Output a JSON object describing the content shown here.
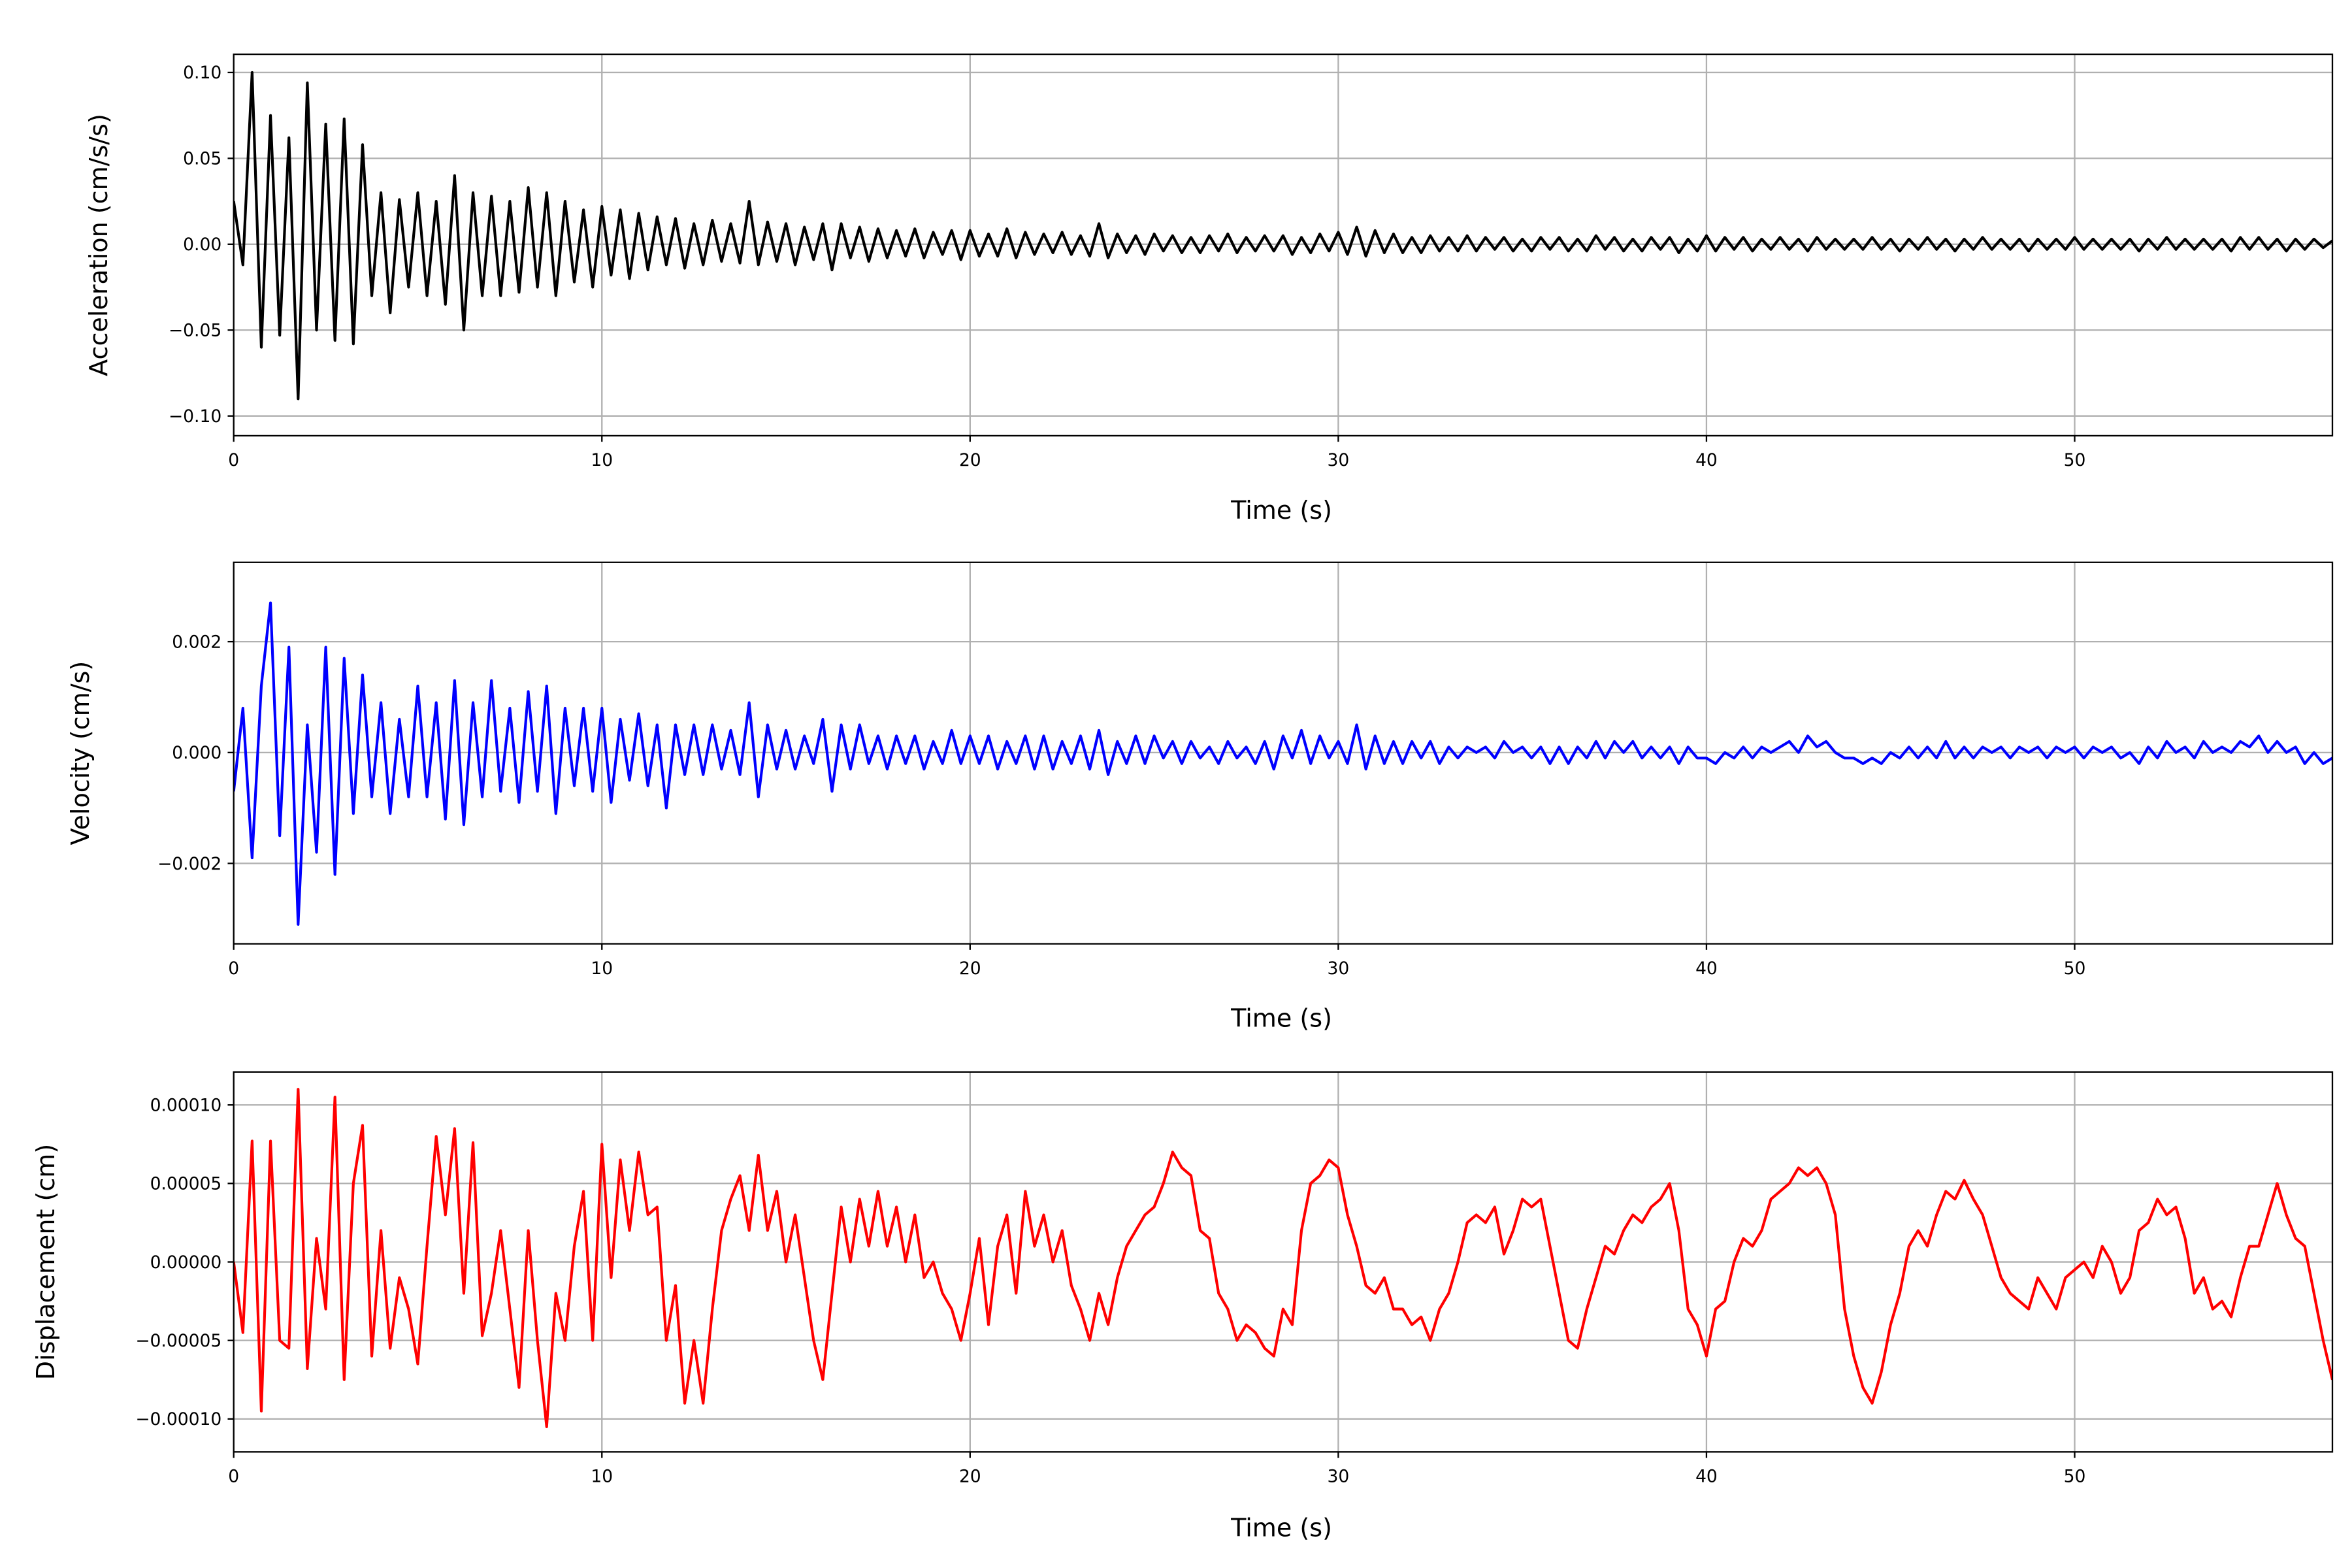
{
  "chart_data": [
    {
      "type": "line",
      "ylabel": "Acceleration (cm/s/s)",
      "xlabel": "Time (s)",
      "color": "#000000",
      "xlim": [
        0,
        57
      ],
      "ylim": [
        -0.1115,
        0.1106
      ],
      "grid": true,
      "xticks": [
        0,
        10,
        20,
        30,
        40,
        50
      ],
      "xtick_labels": [
        "0",
        "10",
        "20",
        "30",
        "40",
        "50"
      ],
      "yticks": [
        0.1,
        0.05,
        0,
        -0.05,
        -0.1
      ],
      "ytick_labels": [
        "0.10",
        "0.05",
        "0.00",
        "−0.05",
        "−0.10"
      ],
      "t0": 0,
      "dt": 0.25,
      "value_scale": 1,
      "values": [
        0.025,
        -0.012,
        0.1,
        -0.06,
        0.075,
        -0.053,
        0.062,
        -0.09,
        0.094,
        -0.05,
        0.07,
        -0.056,
        0.073,
        -0.058,
        0.058,
        -0.03,
        0.03,
        -0.04,
        0.026,
        -0.025,
        0.03,
        -0.03,
        0.025,
        -0.035,
        0.04,
        -0.05,
        0.03,
        -0.03,
        0.028,
        -0.03,
        0.025,
        -0.028,
        0.033,
        -0.025,
        0.03,
        -0.03,
        0.025,
        -0.022,
        0.02,
        -0.025,
        0.022,
        -0.018,
        0.02,
        -0.02,
        0.018,
        -0.015,
        0.016,
        -0.012,
        0.015,
        -0.014,
        0.012,
        -0.012,
        0.014,
        -0.01,
        0.012,
        -0.011,
        0.025,
        -0.012,
        0.013,
        -0.01,
        0.012,
        -0.012,
        0.01,
        -0.009,
        0.012,
        -0.015,
        0.012,
        -0.008,
        0.01,
        -0.01,
        0.009,
        -0.008,
        0.008,
        -0.007,
        0.009,
        -0.008,
        0.007,
        -0.006,
        0.008,
        -0.009,
        0.008,
        -0.007,
        0.006,
        -0.007,
        0.009,
        -0.008,
        0.007,
        -0.006,
        0.006,
        -0.005,
        0.007,
        -0.006,
        0.005,
        -0.007,
        0.012,
        -0.008,
        0.006,
        -0.005,
        0.005,
        -0.006,
        0.006,
        -0.004,
        0.005,
        -0.005,
        0.004,
        -0.005,
        0.005,
        -0.004,
        0.006,
        -0.005,
        0.004,
        -0.004,
        0.005,
        -0.004,
        0.005,
        -0.006,
        0.004,
        -0.005,
        0.006,
        -0.004,
        0.007,
        -0.006,
        0.01,
        -0.007,
        0.008,
        -0.005,
        0.006,
        -0.005,
        0.004,
        -0.005,
        0.005,
        -0.004,
        0.004,
        -0.004,
        0.005,
        -0.004,
        0.004,
        -0.003,
        0.004,
        -0.004,
        0.003,
        -0.004,
        0.004,
        -0.003,
        0.004,
        -0.004,
        0.003,
        -0.004,
        0.005,
        -0.003,
        0.004,
        -0.004,
        0.003,
        -0.004,
        0.004,
        -0.003,
        0.004,
        -0.005,
        0.003,
        -0.004,
        0.005,
        -0.004,
        0.004,
        -0.003,
        0.004,
        -0.004,
        0.003,
        -0.003,
        0.004,
        -0.003,
        0.003,
        -0.004,
        0.004,
        -0.003,
        0.003,
        -0.003,
        0.003,
        -0.003,
        0.004,
        -0.003,
        0.003,
        -0.004,
        0.003,
        -0.003,
        0.004,
        -0.003,
        0.003,
        -0.004,
        0.003,
        -0.003,
        0.004,
        -0.003,
        0.003,
        -0.003,
        0.003,
        -0.004,
        0.003,
        -0.003,
        0.003,
        -0.003,
        0.004,
        -0.003,
        0.003,
        -0.003,
        0.003,
        -0.003,
        0.003,
        -0.004,
        0.003,
        -0.003,
        0.004,
        -0.003,
        0.003,
        -0.003,
        0.003,
        -0.003,
        0.003,
        -0.004,
        0.004,
        -0.003,
        0.004,
        -0.003,
        0.003,
        -0.004,
        0.003,
        -0.003,
        0.003,
        -0.002,
        0.002
      ]
    },
    {
      "type": "line",
      "ylabel": "Velocity (cm/s)",
      "xlabel": "Time (s)",
      "color": "#0000ff",
      "xlim": [
        0,
        57
      ],
      "ylim": [
        -0.00345,
        0.00343
      ],
      "grid": true,
      "xticks": [
        0,
        10,
        20,
        30,
        40,
        50
      ],
      "xtick_labels": [
        "0",
        "10",
        "20",
        "30",
        "40",
        "50"
      ],
      "yticks": [
        0.002,
        0,
        -0.002
      ],
      "ytick_labels": [
        "0.002",
        "0.000",
        "−0.002"
      ],
      "t0": 0,
      "dt": 0.25,
      "value_scale": 1,
      "values": [
        -0.0007,
        0.0008,
        -0.0019,
        0.0012,
        0.0027,
        -0.0015,
        0.0019,
        -0.0031,
        0.0005,
        -0.0018,
        0.0019,
        -0.0022,
        0.0017,
        -0.0011,
        0.0014,
        -0.0008,
        0.0009,
        -0.0011,
        0.0006,
        -0.0008,
        0.0012,
        -0.0008,
        0.0009,
        -0.0012,
        0.0013,
        -0.0013,
        0.0009,
        -0.0008,
        0.0013,
        -0.0007,
        0.0008,
        -0.0009,
        0.0011,
        -0.0007,
        0.0012,
        -0.0011,
        0.0008,
        -0.0006,
        0.0008,
        -0.0007,
        0.0008,
        -0.0009,
        0.0006,
        -0.0005,
        0.0007,
        -0.0006,
        0.0005,
        -0.001,
        0.0005,
        -0.0004,
        0.0005,
        -0.0004,
        0.0005,
        -0.0003,
        0.0004,
        -0.0004,
        0.0009,
        -0.0008,
        0.0005,
        -0.0003,
        0.0004,
        -0.0003,
        0.0003,
        -0.0002,
        0.0006,
        -0.0007,
        0.0005,
        -0.0003,
        0.0005,
        -0.0002,
        0.0003,
        -0.0003,
        0.0003,
        -0.0002,
        0.0003,
        -0.0003,
        0.0002,
        -0.0002,
        0.0004,
        -0.0002,
        0.0003,
        -0.0002,
        0.0003,
        -0.0003,
        0.0002,
        -0.0002,
        0.0003,
        -0.0003,
        0.0003,
        -0.0003,
        0.0002,
        -0.0002,
        0.0003,
        -0.0003,
        0.0004,
        -0.0004,
        0.0002,
        -0.0002,
        0.0003,
        -0.0002,
        0.0003,
        -0.0001,
        0.0002,
        -0.0002,
        0.0002,
        -0.0001,
        0.0001,
        -0.0002,
        0.0002,
        -0.0001,
        0.0001,
        -0.0002,
        0.0002,
        -0.0003,
        0.0003,
        -0.0001,
        0.0004,
        -0.0002,
        0.0003,
        -0.0001,
        0.0002,
        -0.0002,
        0.0005,
        -0.0003,
        0.0003,
        -0.0002,
        0.0002,
        -0.0002,
        0.0002,
        -0.0001,
        0.0002,
        -0.0002,
        0.0001,
        -0.0001,
        0.0001,
        0,
        0.0001,
        -0.0001,
        0.0002,
        0,
        0.0001,
        -0.0001,
        0.0001,
        -0.0002,
        0.0001,
        -0.0002,
        0.0001,
        -0.0001,
        0.0002,
        -0.0001,
        0.0002,
        0,
        0.0002,
        -0.0001,
        0.0001,
        -0.0001,
        0.0001,
        -0.0002,
        0.0001,
        -0.0001,
        -0.0001,
        -0.0002,
        0,
        -0.0001,
        0.0001,
        -0.0001,
        0.0001,
        0,
        0.0001,
        0.0002,
        0,
        0.0003,
        0.0001,
        0.0002,
        0,
        -0.0001,
        -0.0001,
        -0.0002,
        -0.0001,
        -0.0002,
        0,
        -0.0001,
        0.0001,
        -0.0001,
        0.0001,
        -0.0001,
        0.0002,
        -0.0001,
        0.0001,
        -0.0001,
        0.0001,
        0,
        0.0001,
        -0.0001,
        0.0001,
        0,
        0.0001,
        -0.0001,
        0.0001,
        0,
        0.0001,
        -0.0001,
        0.0001,
        0,
        0.0001,
        -0.0001,
        0,
        -0.0002,
        0.0001,
        -0.0001,
        0.0002,
        0,
        0.0001,
        -0.0001,
        0.0002,
        0,
        0.0001,
        0,
        0.0002,
        0.0001,
        0.0003,
        0,
        0.0002,
        0,
        0.0001,
        -0.0002,
        0,
        -0.0002,
        -0.0001
      ]
    },
    {
      "type": "line",
      "ylabel": "Displacement (cm)",
      "xlabel": "Time (s)",
      "color": "#ff0000",
      "xlim": [
        0,
        57
      ],
      "ylim": [
        -0.000121,
        0.000121
      ],
      "grid": true,
      "xticks": [
        0,
        10,
        20,
        30,
        40,
        50
      ],
      "xtick_labels": [
        "0",
        "10",
        "20",
        "30",
        "40",
        "50"
      ],
      "yticks": [
        0.0001,
        5e-05,
        0,
        -5e-05,
        -0.0001
      ],
      "ytick_labels": [
        "0.00010",
        "0.00005",
        "0.00000",
        "−0.00005",
        "−0.00010"
      ],
      "t0": 0,
      "dt": 0.25,
      "value_scale": 1e-05,
      "values": [
        0,
        -4.5,
        7.7,
        -9.5,
        7.7,
        -5,
        -5.5,
        11,
        -6.8,
        1.5,
        -3,
        10.5,
        -7.5,
        5,
        8.7,
        -6,
        2,
        -5.5,
        -1,
        -3,
        -6.5,
        1,
        8,
        3,
        8.5,
        -2,
        7.6,
        -4.7,
        -2,
        2,
        -3,
        -8,
        2,
        -5,
        -10.5,
        -2,
        -5,
        1,
        4.5,
        -5,
        7.5,
        -1,
        6.5,
        2,
        7,
        3,
        3.5,
        -5,
        -1.5,
        -9,
        -5,
        -9,
        -3,
        2,
        4,
        5.5,
        2,
        6.8,
        2,
        4.5,
        0,
        3,
        -1,
        -5,
        -7.5,
        -2,
        3.5,
        0,
        4,
        1,
        4.5,
        1,
        3.5,
        0,
        3,
        -1,
        0,
        -2,
        -3,
        -5,
        -2,
        1.5,
        -4,
        1,
        3,
        -2,
        4.5,
        1,
        3,
        0,
        2,
        -1.5,
        -3,
        -5,
        -2,
        -4,
        -1,
        1,
        2,
        3,
        3.5,
        5,
        7,
        6,
        5.5,
        2,
        1.5,
        -2,
        -3,
        -5,
        -4,
        -4.5,
        -5.5,
        -6,
        -3,
        -4,
        2,
        5,
        5.5,
        6.5,
        6,
        3,
        1,
        -1.5,
        -2,
        -1,
        -3,
        -3,
        -4,
        -3.5,
        -5,
        -3,
        -2,
        0,
        2.5,
        3,
        2.5,
        3.5,
        0.5,
        2,
        4,
        3.5,
        4,
        1,
        -2,
        -5,
        -5.5,
        -3,
        -1,
        1,
        0.5,
        2,
        3,
        2.5,
        3.5,
        4,
        5,
        2,
        -3,
        -4,
        -6,
        -3,
        -2.5,
        0,
        1.5,
        1,
        2,
        4,
        4.5,
        5,
        6,
        5.5,
        6,
        5,
        3,
        -3,
        -6,
        -8,
        -9,
        -7,
        -4,
        -2,
        1,
        2,
        1,
        3,
        4.5,
        4,
        5.2,
        4,
        3,
        1,
        -1,
        -2,
        -2.5,
        -3,
        -1,
        -2,
        -3,
        -1,
        -0.5,
        0,
        -1,
        1,
        0,
        -2,
        -1,
        2,
        2.5,
        4,
        3,
        3.5,
        1.5,
        -2,
        -1,
        -3,
        -2.5,
        -3.5,
        -1,
        1,
        1,
        3,
        5,
        3,
        1.5,
        1,
        -2,
        -5,
        -7.5
      ]
    }
  ]
}
